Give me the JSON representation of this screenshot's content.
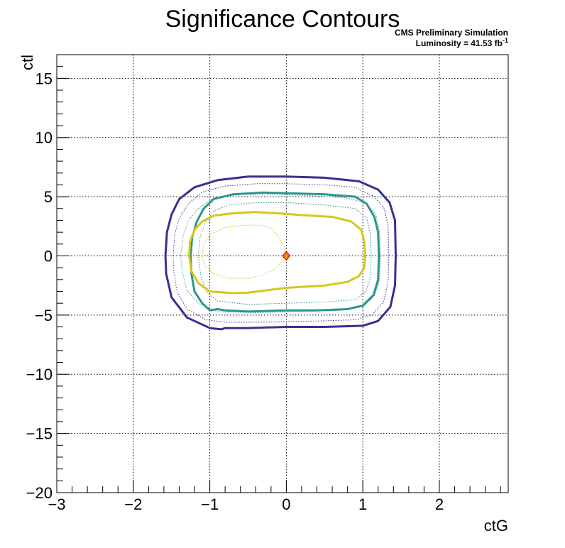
{
  "chart_data": {
    "type": "contour",
    "title": "Significance Contours",
    "annotation_line1": "CMS Preliminary Simulation",
    "annotation_line2_prefix": "Luminosity = 41.53 fb",
    "annotation_line2_sup": "-1",
    "xlabel": "ctG",
    "ylabel": "ctl",
    "xlim": [
      -3,
      2.9
    ],
    "ylim": [
      -20,
      17
    ],
    "x_ticks": [
      -3,
      -2,
      -1,
      0,
      1,
      2
    ],
    "x_tick_labels": [
      "−3",
      "−2",
      "−1",
      "0",
      "1",
      "2"
    ],
    "y_ticks": [
      -20,
      -15,
      -10,
      -5,
      0,
      5,
      10,
      15
    ],
    "y_tick_labels": [
      "−20",
      "−15",
      "−10",
      "−5",
      "0",
      "5",
      "10",
      "15"
    ],
    "grid": true,
    "best_fit_point": {
      "x": 0,
      "y": 0,
      "fill": "#ff8c00",
      "stroke": "#cc0000"
    },
    "contours": [
      {
        "color": "#35328f",
        "style": "solid",
        "width": 3,
        "points": [
          [
            -1.58,
            0
          ],
          [
            -1.56,
            2
          ],
          [
            -1.5,
            3.5
          ],
          [
            -1.4,
            4.8
          ],
          [
            -1.2,
            5.8
          ],
          [
            -0.9,
            6.4
          ],
          [
            -0.5,
            6.7
          ],
          [
            0,
            6.7
          ],
          [
            0.5,
            6.6
          ],
          [
            0.95,
            6.3
          ],
          [
            1.2,
            5.6
          ],
          [
            1.35,
            4.5
          ],
          [
            1.42,
            3
          ],
          [
            1.43,
            0
          ],
          [
            1.42,
            -2.5
          ],
          [
            1.36,
            -4.3
          ],
          [
            1.2,
            -5.5
          ],
          [
            1.0,
            -5.9
          ],
          [
            0.5,
            -6.0
          ],
          [
            0,
            -6.0
          ],
          [
            -0.5,
            -6.1
          ],
          [
            -0.8,
            -6.1
          ],
          [
            -0.85,
            -6.2
          ],
          [
            -1.0,
            -6.1
          ],
          [
            -1.3,
            -5.2
          ],
          [
            -1.5,
            -3.5
          ],
          [
            -1.57,
            -1.5
          ]
        ]
      },
      {
        "color": "#35328f",
        "style": "dotted",
        "width": 1,
        "points": [
          [
            -1.48,
            0
          ],
          [
            -1.46,
            1.8
          ],
          [
            -1.4,
            3.2
          ],
          [
            -1.28,
            4.4
          ],
          [
            -1.1,
            5.4
          ],
          [
            -0.8,
            5.9
          ],
          [
            -0.4,
            6.1
          ],
          [
            0,
            6.1
          ],
          [
            0.5,
            6.0
          ],
          [
            0.9,
            5.8
          ],
          [
            1.15,
            5.0
          ],
          [
            1.28,
            4.0
          ],
          [
            1.33,
            2.5
          ],
          [
            1.34,
            0
          ],
          [
            1.33,
            -2.2
          ],
          [
            1.27,
            -3.9
          ],
          [
            1.12,
            -5.0
          ],
          [
            0.9,
            -5.4
          ],
          [
            0.4,
            -5.5
          ],
          [
            -0.3,
            -5.6
          ],
          [
            -0.8,
            -5.6
          ],
          [
            -1.05,
            -5.4
          ],
          [
            -1.3,
            -4.5
          ],
          [
            -1.43,
            -3.0
          ],
          [
            -1.47,
            -1.3
          ]
        ]
      },
      {
        "color": "#2e8b8b",
        "style": "dotted",
        "width": 1,
        "points": [
          [
            -1.38,
            0
          ],
          [
            -1.35,
            1.7
          ],
          [
            -1.28,
            3.0
          ],
          [
            -1.15,
            4.0
          ],
          [
            -0.95,
            4.9
          ],
          [
            -0.6,
            5.2
          ],
          [
            -0.2,
            5.2
          ],
          [
            0.3,
            5.1
          ],
          [
            0.8,
            4.9
          ],
          [
            1.05,
            4.4
          ],
          [
            1.17,
            3.5
          ],
          [
            1.22,
            2.0
          ],
          [
            1.23,
            0
          ],
          [
            1.22,
            -2.0
          ],
          [
            1.15,
            -3.4
          ],
          [
            1.0,
            -4.3
          ],
          [
            0.7,
            -4.6
          ],
          [
            0.2,
            -4.7
          ],
          [
            -0.4,
            -4.8
          ],
          [
            -0.9,
            -4.7
          ],
          [
            -1.15,
            -4.0
          ],
          [
            -1.3,
            -2.9
          ],
          [
            -1.36,
            -1.3
          ]
        ]
      },
      {
        "color": "#2e9590",
        "style": "solid",
        "width": 3,
        "points": [
          [
            -1.25,
            0
          ],
          [
            -1.23,
            1.6
          ],
          [
            -1.17,
            2.9
          ],
          [
            -1.08,
            4.0
          ],
          [
            -0.95,
            4.8
          ],
          [
            -0.7,
            5.2
          ],
          [
            -0.3,
            5.35
          ],
          [
            0,
            5.3
          ],
          [
            0.5,
            5.2
          ],
          [
            0.9,
            5.0
          ],
          [
            1.05,
            4.4
          ],
          [
            1.15,
            3.3
          ],
          [
            1.2,
            2.0
          ],
          [
            1.21,
            0
          ],
          [
            1.2,
            -2.0
          ],
          [
            1.14,
            -3.3
          ],
          [
            1.0,
            -4.2
          ],
          [
            0.8,
            -4.5
          ],
          [
            0.4,
            -4.6
          ],
          [
            0,
            -4.6
          ],
          [
            -0.5,
            -4.7
          ],
          [
            -0.8,
            -4.6
          ],
          [
            -0.9,
            -4.5
          ],
          [
            -1.0,
            -4.6
          ],
          [
            -1.1,
            -4.0
          ],
          [
            -1.2,
            -3.0
          ],
          [
            -1.24,
            -1.5
          ]
        ]
      },
      {
        "color": "#2e8b8b",
        "style": "dotted",
        "width": 1,
        "points": [
          [
            -1.15,
            0
          ],
          [
            -1.13,
            1.5
          ],
          [
            -1.06,
            2.8
          ],
          [
            -0.95,
            3.8
          ],
          [
            -0.75,
            4.3
          ],
          [
            -0.4,
            4.5
          ],
          [
            0,
            4.5
          ],
          [
            0.5,
            4.3
          ],
          [
            0.9,
            4.0
          ],
          [
            1.05,
            3.2
          ],
          [
            1.1,
            1.8
          ],
          [
            1.11,
            0
          ],
          [
            1.1,
            -1.8
          ],
          [
            1.04,
            -3.0
          ],
          [
            0.9,
            -3.7
          ],
          [
            0.5,
            -3.9
          ],
          [
            0,
            -4.0
          ],
          [
            -0.5,
            -4.1
          ],
          [
            -0.9,
            -3.8
          ],
          [
            -1.05,
            -3.0
          ],
          [
            -1.12,
            -1.6
          ]
        ]
      },
      {
        "color": "#d4c81a",
        "style": "solid",
        "width": 3,
        "points": [
          [
            -1.27,
            0
          ],
          [
            -1.26,
            1.2
          ],
          [
            -1.2,
            2.2
          ],
          [
            -1.1,
            2.9
          ],
          [
            -0.95,
            3.4
          ],
          [
            -0.7,
            3.6
          ],
          [
            -0.4,
            3.7
          ],
          [
            -0.1,
            3.6
          ],
          [
            0.2,
            3.45
          ],
          [
            0.6,
            3.3
          ],
          [
            0.85,
            2.9
          ],
          [
            0.98,
            2.2
          ],
          [
            1.02,
            1.2
          ],
          [
            1.03,
            0
          ],
          [
            1.02,
            -1.0
          ],
          [
            0.95,
            -1.7
          ],
          [
            0.8,
            -2.2
          ],
          [
            0.5,
            -2.5
          ],
          [
            0,
            -2.7
          ],
          [
            -0.5,
            -3.1
          ],
          [
            -0.7,
            -3.15
          ],
          [
            -1.0,
            -3.0
          ],
          [
            -1.15,
            -2.3
          ],
          [
            -1.24,
            -1.3
          ]
        ]
      },
      {
        "color": "#c8c020",
        "style": "dotted",
        "width": 1,
        "points": [
          [
            -1.1,
            0
          ],
          [
            -1.08,
            1.0
          ],
          [
            -1.0,
            1.8
          ],
          [
            -0.8,
            2.4
          ],
          [
            -0.55,
            2.6
          ],
          [
            -0.35,
            2.6
          ],
          [
            -0.2,
            2.4
          ],
          [
            -0.1,
            1.6
          ],
          [
            -0.05,
            1.0
          ],
          [
            0,
            0.5
          ],
          [
            -0.05,
            -0.4
          ],
          [
            -0.15,
            -1.1
          ],
          [
            -0.3,
            -1.6
          ],
          [
            -0.5,
            -1.9
          ],
          [
            -0.75,
            -1.9
          ],
          [
            -0.95,
            -1.5
          ],
          [
            -1.07,
            -0.8
          ]
        ]
      }
    ]
  }
}
